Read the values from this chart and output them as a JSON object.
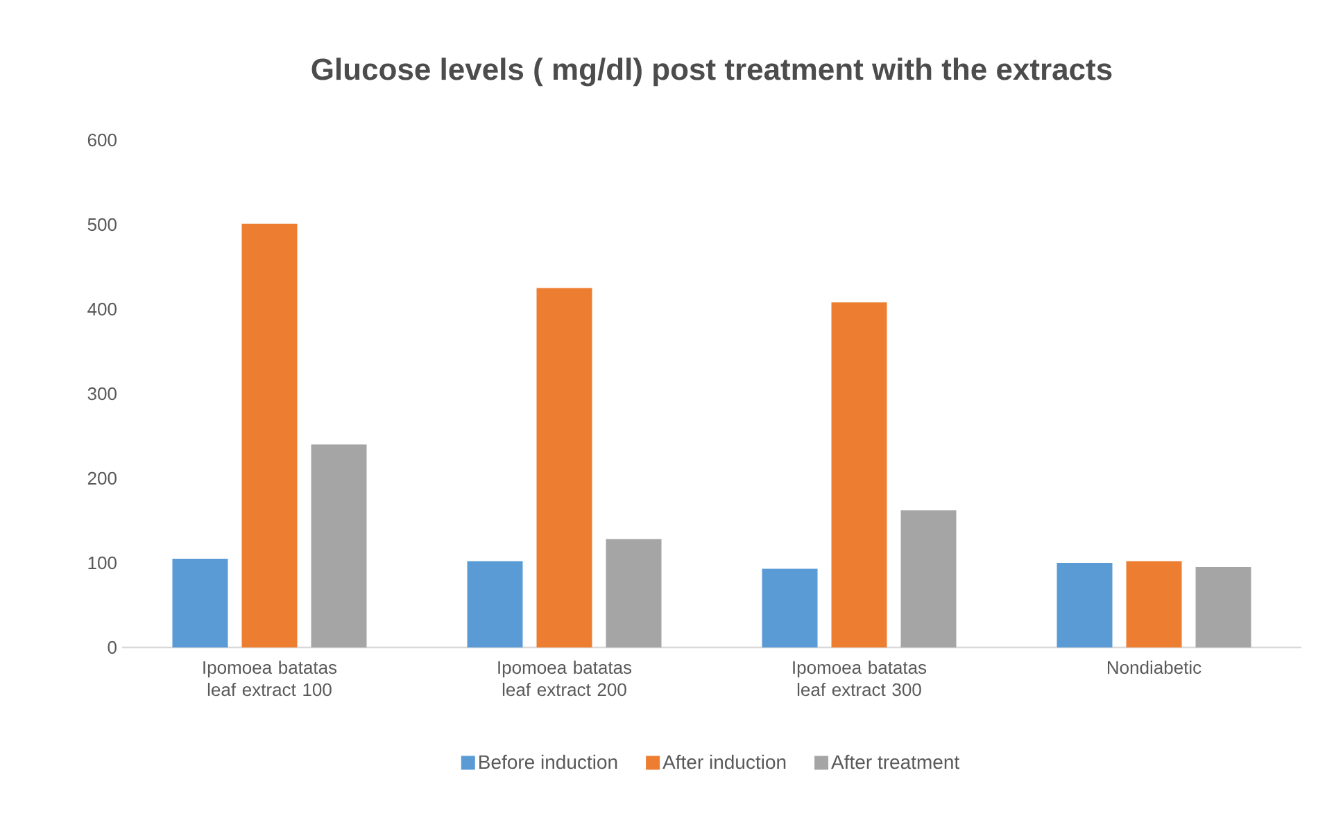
{
  "chart_data": {
    "type": "bar",
    "title": "Glucose levels ( mg/dl) post treatment with the extracts",
    "categories": [
      "Ipomoea batatas leaf extract 100",
      "Ipomoea batatas leaf extract 200",
      "Ipomoea batatas leaf extract 300",
      "Nondiabetic"
    ],
    "series": [
      {
        "name": "Before induction",
        "color": "#5b9bd5",
        "values": [
          105,
          102,
          93,
          100
        ]
      },
      {
        "name": "After induction",
        "color": "#ed7d31",
        "values": [
          501,
          425,
          408,
          102
        ]
      },
      {
        "name": "After treatment",
        "color": "#a5a5a5",
        "values": [
          240,
          128,
          162,
          95
        ]
      }
    ],
    "ylim": [
      0,
      600
    ],
    "yticks": [
      0,
      100,
      200,
      300,
      400,
      500,
      600
    ],
    "grid": false,
    "legend": "bottom"
  }
}
